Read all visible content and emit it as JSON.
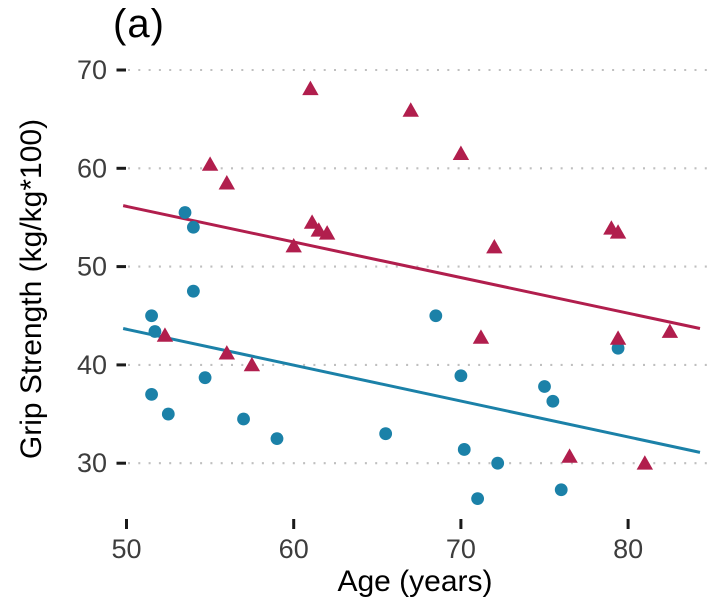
{
  "chart_data": {
    "type": "scatter",
    "title": "(a)",
    "xlabel": "Age (years)",
    "ylabel": "Grip Strength (kg/kg*100)",
    "xlim": [
      49.3,
      85.2
    ],
    "ylim": [
      24.5,
      71.5
    ],
    "x_ticks": [
      "50",
      "60",
      "70",
      "80"
    ],
    "y_ticks": [
      "30",
      "40",
      "50",
      "60",
      "70"
    ],
    "grid": "horizontal dotted lines at each y tick, gray",
    "legend_position": "none",
    "colors": {
      "red_series": "#B11E4D",
      "blue_series": "#1B81A8",
      "gridline": "#BFBFBF",
      "tick_label": "#3d3d3d",
      "tick_mark": "#1a1a1a"
    },
    "series": [
      {
        "name": "red-triangles",
        "marker": "triangle",
        "color": "#B11E4D",
        "points": [
          [
            52.3,
            43.0
          ],
          [
            55.0,
            60.4
          ],
          [
            56.0,
            58.5
          ],
          [
            56.0,
            41.2
          ],
          [
            57.5,
            40.0
          ],
          [
            60.0,
            52.1
          ],
          [
            61.0,
            68.1
          ],
          [
            61.1,
            54.5
          ],
          [
            61.5,
            53.7
          ],
          [
            62.0,
            53.4
          ],
          [
            67.0,
            65.9
          ],
          [
            70.0,
            61.5
          ],
          [
            71.2,
            42.8
          ],
          [
            72.0,
            52.0
          ],
          [
            76.5,
            30.7
          ],
          [
            79.0,
            53.9
          ],
          [
            79.4,
            53.5
          ],
          [
            79.4,
            42.7
          ],
          [
            81.0,
            30.0
          ],
          [
            82.5,
            43.4
          ]
        ],
        "trend_line": {
          "x": [
            49.8,
            84.3
          ],
          "y": [
            56.2,
            43.7
          ]
        }
      },
      {
        "name": "blue-circles",
        "marker": "circle",
        "color": "#1B81A8",
        "points": [
          [
            51.5,
            45.0
          ],
          [
            51.5,
            37.0
          ],
          [
            51.7,
            43.4
          ],
          [
            52.5,
            35.0
          ],
          [
            53.5,
            55.5
          ],
          [
            54.0,
            54.0
          ],
          [
            54.0,
            47.5
          ],
          [
            54.7,
            38.7
          ],
          [
            57.0,
            34.5
          ],
          [
            59.0,
            32.5
          ],
          [
            65.5,
            33.0
          ],
          [
            68.5,
            45.0
          ],
          [
            70.0,
            38.9
          ],
          [
            70.2,
            31.4
          ],
          [
            71.0,
            26.4
          ],
          [
            72.2,
            30.0
          ],
          [
            75.0,
            37.8
          ],
          [
            75.5,
            36.3
          ],
          [
            76.0,
            27.3
          ],
          [
            79.4,
            41.7
          ]
        ],
        "trend_line": {
          "x": [
            49.8,
            84.3
          ],
          "y": [
            43.7,
            31.1
          ]
        }
      }
    ]
  }
}
